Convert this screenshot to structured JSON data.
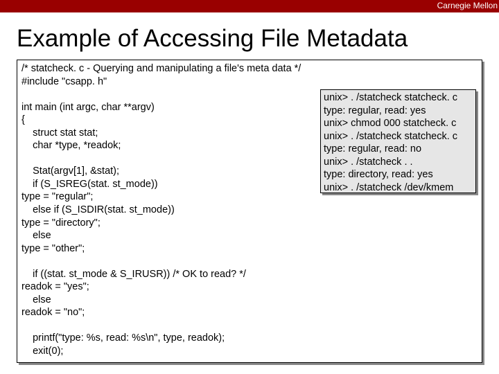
{
  "header": {
    "institution": "Carnegie Mellon"
  },
  "slide": {
    "title": "Example of Accessing File Metadata"
  },
  "source": {
    "code": "/* statcheck. c - Querying and manipulating a file's meta data */\n#include \"csapp. h\"\n\nint main (int argc, char **argv)\n{\n    struct stat stat;\n    char *type, *readok;\n\n    Stat(argv[1], &stat);\n    if (S_ISREG(stat. st_mode))\ntype = \"regular\";\n    else if (S_ISDIR(stat. st_mode))\ntype = \"directory\";\n    else\ntype = \"other\";\n\n    if ((stat. st_mode & S_IRUSR)) /* OK to read? */\nreadok = \"yes\";\n    else\nreadok = \"no\";\n\n    printf(\"type: %s, read: %s\\n\", type, readok);\n    exit(0);"
  },
  "output": {
    "text": "unix> . /statcheck statcheck. c\ntype: regular, read: yes\nunix> chmod 000 statcheck. c\nunix> . /statcheck statcheck. c\ntype: regular, read: no\nunix> . /statcheck . .\ntype: directory, read: yes\nunix> . /statcheck /dev/kmem\ntype: other, read: yes"
  },
  "colors": {
    "header_bg": "#990000",
    "header_text": "#ffffff",
    "title_text": "#000000",
    "code_bg": "#ffffff",
    "code_border": "#000000",
    "code_shadow": "#888888",
    "output_bg": "#e6e6e6"
  }
}
